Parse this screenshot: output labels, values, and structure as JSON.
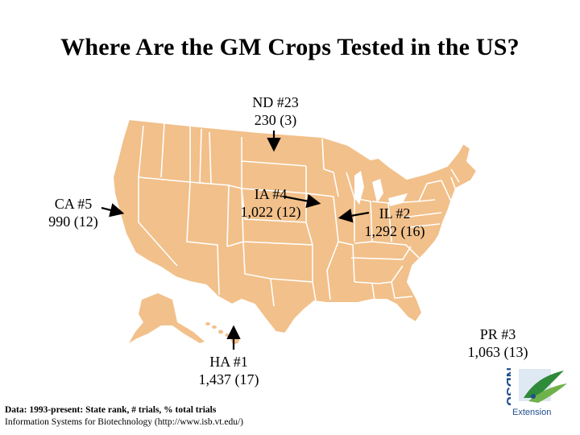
{
  "title": "Where Are the GM Crops Tested in the US?",
  "colors": {
    "map_fill": "#f2c08a",
    "state_border": "#ffffff",
    "arrow": "#000000",
    "logo_blue": "#1e4e8c",
    "logo_green": "#2f8a3a"
  },
  "labels": {
    "nd": {
      "line1": "ND #23",
      "line2": "230 (3)"
    },
    "ia": {
      "line1": "IA #4",
      "line2": "1,022 (12)"
    },
    "ca": {
      "line1": "CA #5",
      "line2": "990 (12)"
    },
    "il": {
      "line1": "IL #2",
      "line2": "1,292 (16)"
    },
    "ha": {
      "line1": "HA #1",
      "line2": "1,437 (17)"
    },
    "pr": {
      "line1": "PR #3",
      "line2": "1,063 (13)"
    }
  },
  "footer": {
    "line1": "Data: 1993-present: State rank, # trials, % total trials",
    "line2": "Information Systems for Biotechnology (http://www.isb.vt.edu/)"
  },
  "logo": {
    "letters": "NDSU",
    "extension": "Extension",
    "icon": "wheat-leaf-icon"
  }
}
